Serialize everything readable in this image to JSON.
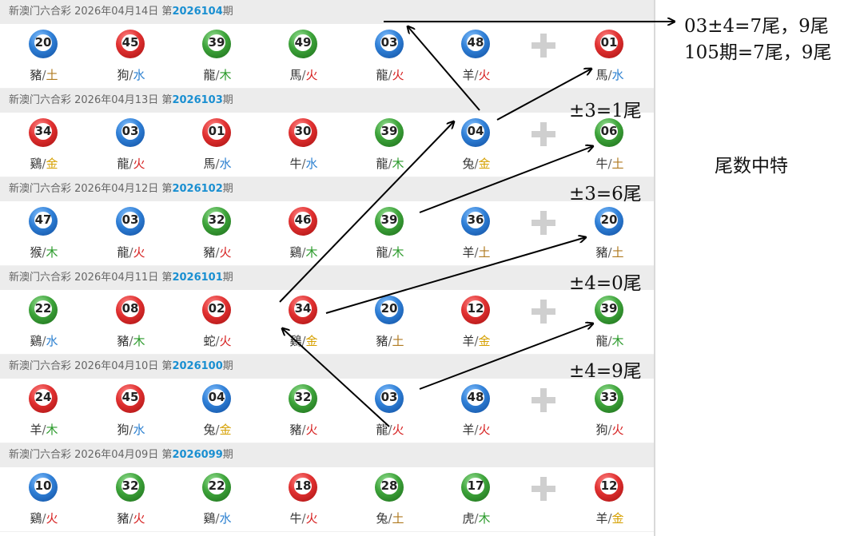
{
  "draws": [
    {
      "header_prefix": "新澳门六合彩 2026年04月14日 第",
      "issue": "2026104",
      "header_suffix": "期",
      "balls": [
        {
          "number": "20",
          "color": "blue",
          "zodiac": "豬",
          "element": "土"
        },
        {
          "number": "45",
          "color": "red",
          "zodiac": "狗",
          "element": "水"
        },
        {
          "number": "39",
          "color": "green",
          "zodiac": "龍",
          "element": "木"
        },
        {
          "number": "49",
          "color": "green",
          "zodiac": "馬",
          "element": "火"
        },
        {
          "number": "03",
          "color": "blue",
          "zodiac": "龍",
          "element": "火"
        },
        {
          "number": "48",
          "color": "blue",
          "zodiac": "羊",
          "element": "火"
        },
        {
          "number": "01",
          "color": "red",
          "zodiac": "馬",
          "element": "水"
        }
      ]
    },
    {
      "header_prefix": "新澳门六合彩 2026年04月13日 第",
      "issue": "2026103",
      "header_suffix": "期",
      "balls": [
        {
          "number": "34",
          "color": "red",
          "zodiac": "鷄",
          "element": "金"
        },
        {
          "number": "03",
          "color": "blue",
          "zodiac": "龍",
          "element": "火"
        },
        {
          "number": "01",
          "color": "red",
          "zodiac": "馬",
          "element": "水"
        },
        {
          "number": "30",
          "color": "red",
          "zodiac": "牛",
          "element": "水"
        },
        {
          "number": "39",
          "color": "green",
          "zodiac": "龍",
          "element": "木"
        },
        {
          "number": "04",
          "color": "blue",
          "zodiac": "兔",
          "element": "金"
        },
        {
          "number": "06",
          "color": "green",
          "zodiac": "牛",
          "element": "土"
        }
      ]
    },
    {
      "header_prefix": "新澳门六合彩 2026年04月12日 第",
      "issue": "2026102",
      "header_suffix": "期",
      "balls": [
        {
          "number": "47",
          "color": "blue",
          "zodiac": "猴",
          "element": "木"
        },
        {
          "number": "03",
          "color": "blue",
          "zodiac": "龍",
          "element": "火"
        },
        {
          "number": "32",
          "color": "green",
          "zodiac": "豬",
          "element": "火"
        },
        {
          "number": "46",
          "color": "red",
          "zodiac": "鷄",
          "element": "木"
        },
        {
          "number": "39",
          "color": "green",
          "zodiac": "龍",
          "element": "木"
        },
        {
          "number": "36",
          "color": "blue",
          "zodiac": "羊",
          "element": "土"
        },
        {
          "number": "20",
          "color": "blue",
          "zodiac": "豬",
          "element": "土"
        }
      ]
    },
    {
      "header_prefix": "新澳门六合彩 2026年04月11日 第",
      "issue": "2026101",
      "header_suffix": "期",
      "balls": [
        {
          "number": "22",
          "color": "green",
          "zodiac": "鷄",
          "element": "水"
        },
        {
          "number": "08",
          "color": "red",
          "zodiac": "豬",
          "element": "木"
        },
        {
          "number": "02",
          "color": "red",
          "zodiac": "蛇",
          "element": "火"
        },
        {
          "number": "34",
          "color": "red",
          "zodiac": "鷄",
          "element": "金"
        },
        {
          "number": "20",
          "color": "blue",
          "zodiac": "豬",
          "element": "土"
        },
        {
          "number": "12",
          "color": "red",
          "zodiac": "羊",
          "element": "金"
        },
        {
          "number": "39",
          "color": "green",
          "zodiac": "龍",
          "element": "木"
        }
      ]
    },
    {
      "header_prefix": "新澳门六合彩 2026年04月10日 第",
      "issue": "2026100",
      "header_suffix": "期",
      "balls": [
        {
          "number": "24",
          "color": "red",
          "zodiac": "羊",
          "element": "木"
        },
        {
          "number": "45",
          "color": "red",
          "zodiac": "狗",
          "element": "水"
        },
        {
          "number": "04",
          "color": "blue",
          "zodiac": "兔",
          "element": "金"
        },
        {
          "number": "32",
          "color": "green",
          "zodiac": "豬",
          "element": "火"
        },
        {
          "number": "03",
          "color": "blue",
          "zodiac": "龍",
          "element": "火"
        },
        {
          "number": "48",
          "color": "blue",
          "zodiac": "羊",
          "element": "火"
        },
        {
          "number": "33",
          "color": "green",
          "zodiac": "狗",
          "element": "火"
        }
      ]
    },
    {
      "header_prefix": "新澳门六合彩 2026年04月09日 第",
      "issue": "2026099",
      "header_suffix": "期",
      "balls": [
        {
          "number": "10",
          "color": "blue",
          "zodiac": "鷄",
          "element": "火"
        },
        {
          "number": "32",
          "color": "green",
          "zodiac": "豬",
          "element": "火"
        },
        {
          "number": "22",
          "color": "green",
          "zodiac": "鷄",
          "element": "水"
        },
        {
          "number": "18",
          "color": "red",
          "zodiac": "牛",
          "element": "火"
        },
        {
          "number": "28",
          "color": "green",
          "zodiac": "兔",
          "element": "土"
        },
        {
          "number": "17",
          "color": "green",
          "zodiac": "虎",
          "element": "木"
        },
        {
          "number": "12",
          "color": "red",
          "zodiac": "羊",
          "element": "金"
        }
      ]
    }
  ],
  "notes": {
    "line1": "03±4=7尾，9尾",
    "line2": "105期=7尾，9尾",
    "note_1": "±3=1尾",
    "note_2": "±3=6尾",
    "note_3": "±4=0尾",
    "note_4": "±4=9尾",
    "side_title": "尾数中特"
  },
  "colors": {
    "red": "#e03030",
    "blue": "#2f7fd6",
    "green": "#3da33a",
    "issue": "#1a8fd1",
    "header_bg": "#ececec"
  }
}
